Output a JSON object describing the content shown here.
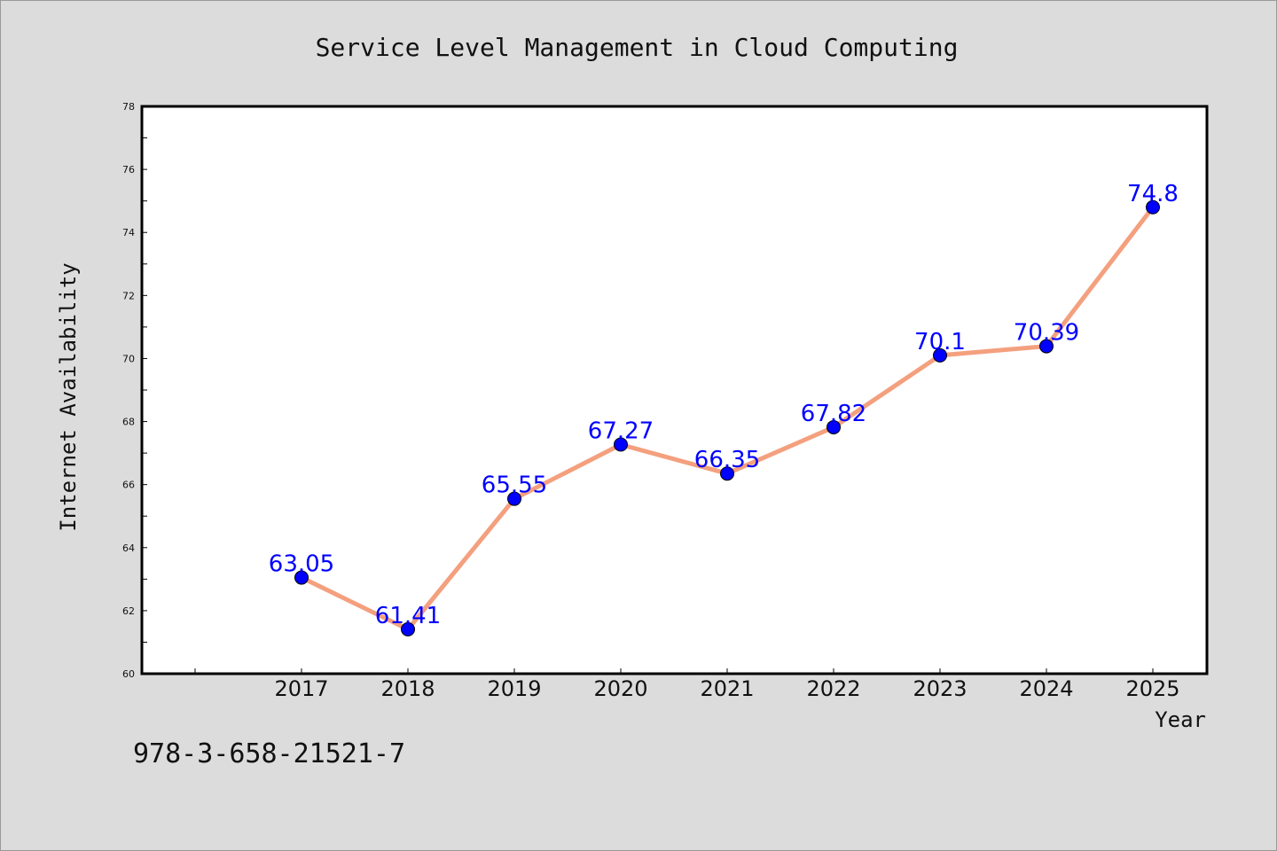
{
  "chart_data": {
    "type": "line",
    "title": "Service Level Management in Cloud Computing",
    "xlabel": "Year",
    "ylabel": "Internet Availability",
    "categories": [
      "2017",
      "2018",
      "2019",
      "2020",
      "2021",
      "2022",
      "2023",
      "2024",
      "2025"
    ],
    "values": [
      63.05,
      61.41,
      65.55,
      67.27,
      66.35,
      67.82,
      70.1,
      70.39,
      74.8
    ],
    "data_labels": [
      "63.05",
      "61.41",
      "65.55",
      "67.27",
      "66.35",
      "67.82",
      "70.1",
      "70.39",
      "74.8"
    ],
    "ylim": [
      60,
      78
    ],
    "yticks": [
      60,
      62,
      64,
      66,
      68,
      70,
      72,
      74,
      76,
      78
    ],
    "grid": false,
    "legend": "none",
    "colors": {
      "line": "#f4a07e",
      "marker": "#0000ff",
      "label": "#0000ff",
      "plot_bg": "#ffffff",
      "page_bg": "#dcdcdc"
    }
  },
  "footer": {
    "isbn": "978-3-658-21521-7"
  }
}
